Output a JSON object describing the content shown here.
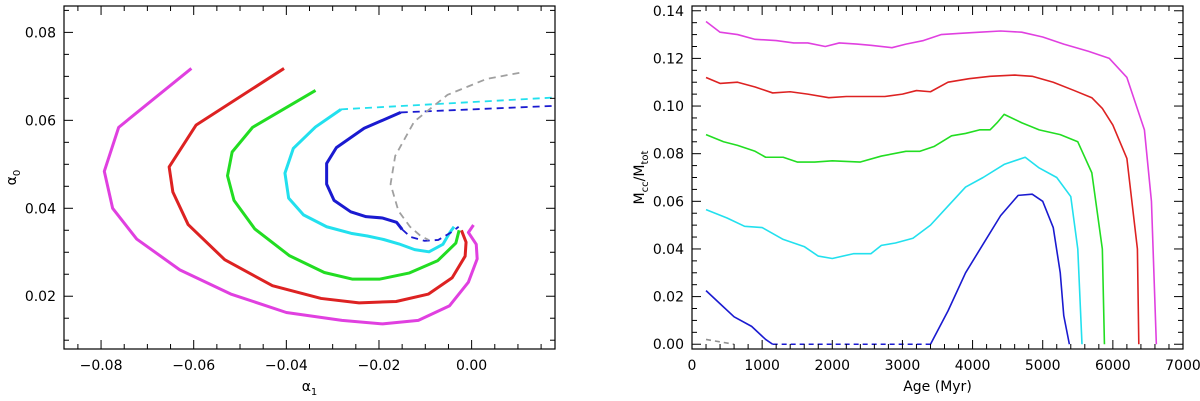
{
  "chart_data": [
    {
      "type": "line",
      "title": "",
      "xlabel": "α1",
      "ylabel": "α0",
      "xlim": [
        -0.088,
        0.018
      ],
      "ylim": [
        0.008,
        0.086
      ],
      "xticks": [
        -0.08,
        -0.06,
        -0.04,
        -0.02,
        0.0
      ],
      "xtick_labels": [
        "−0.08",
        "−0.06",
        "−0.04",
        "−0.02",
        "0.00"
      ],
      "yticks": [
        0.02,
        0.04,
        0.06,
        0.08
      ],
      "ytick_labels": [
        "0.02",
        "0.04",
        "0.06",
        "0.08"
      ],
      "series": [
        {
          "name": "magenta",
          "color": "#e040e0",
          "dash": "solid",
          "points": [
            [
              -0.0605,
              0.0718
            ],
            [
              -0.0762,
              0.0584
            ],
            [
              -0.0793,
              0.0484
            ],
            [
              -0.0775,
              0.04
            ],
            [
              -0.0723,
              0.033
            ],
            [
              -0.063,
              0.026
            ],
            [
              -0.052,
              0.0205
            ],
            [
              -0.04,
              0.0163
            ],
            [
              -0.028,
              0.0145
            ],
            [
              -0.0192,
              0.0137
            ],
            [
              -0.0115,
              0.0145
            ],
            [
              -0.0048,
              0.0178
            ],
            [
              -0.0007,
              0.0232
            ],
            [
              0.0012,
              0.0285
            ],
            [
              0.001,
              0.0318
            ],
            [
              -0.0007,
              0.0345
            ],
            [
              0.0004,
              0.0362
            ]
          ]
        },
        {
          "name": "red",
          "color": "#dd2222",
          "dash": "solid",
          "points": [
            [
              -0.0405,
              0.0718
            ],
            [
              -0.0595,
              0.0589
            ],
            [
              -0.0653,
              0.0494
            ],
            [
              -0.0645,
              0.0437
            ],
            [
              -0.0612,
              0.0363
            ],
            [
              -0.0533,
              0.0283
            ],
            [
              -0.043,
              0.0224
            ],
            [
              -0.0325,
              0.0195
            ],
            [
              -0.0243,
              0.0185
            ],
            [
              -0.0163,
              0.0188
            ],
            [
              -0.0093,
              0.0205
            ],
            [
              -0.0042,
              0.0242
            ],
            [
              -0.0014,
              0.0291
            ],
            [
              -0.0012,
              0.0323
            ],
            [
              -0.0022,
              0.035
            ]
          ]
        },
        {
          "name": "green",
          "color": "#22dd22",
          "dash": "solid",
          "points": [
            [
              -0.0337,
              0.0668
            ],
            [
              -0.0473,
              0.0584
            ],
            [
              -0.0517,
              0.0528
            ],
            [
              -0.0527,
              0.0474
            ],
            [
              -0.0513,
              0.0418
            ],
            [
              -0.0468,
              0.0353
            ],
            [
              -0.0393,
              0.0292
            ],
            [
              -0.0318,
              0.0254
            ],
            [
              -0.0258,
              0.0239
            ],
            [
              -0.0198,
              0.0239
            ],
            [
              -0.0134,
              0.0253
            ],
            [
              -0.0073,
              0.0281
            ],
            [
              -0.0034,
              0.0321
            ],
            [
              -0.0027,
              0.035
            ]
          ]
        },
        {
          "name": "cyan",
          "color": "#22e0ee",
          "dash": "solid",
          "points": [
            [
              -0.0282,
              0.0625
            ],
            [
              -0.0337,
              0.0585
            ],
            [
              -0.0385,
              0.0536
            ],
            [
              -0.0403,
              0.048
            ],
            [
              -0.0395,
              0.0423
            ],
            [
              -0.0363,
              0.0385
            ],
            [
              -0.0313,
              0.0358
            ],
            [
              -0.026,
              0.0343
            ],
            [
              -0.0225,
              0.0337
            ],
            [
              -0.019,
              0.0329
            ],
            [
              -0.0157,
              0.0319
            ],
            [
              -0.0123,
              0.0306
            ],
            [
              -0.0092,
              0.0301
            ],
            [
              -0.0062,
              0.0318
            ],
            [
              -0.0047,
              0.0345
            ],
            [
              -0.0038,
              0.0358
            ]
          ]
        },
        {
          "name": "blue",
          "color": "#1a1ad0",
          "dash": "solid",
          "points": [
            [
              -0.0153,
              0.0618
            ],
            [
              -0.0232,
              0.0582
            ],
            [
              -0.0292,
              0.0538
            ],
            [
              -0.0313,
              0.0502
            ],
            [
              -0.0313,
              0.0455
            ],
            [
              -0.0297,
              0.0418
            ],
            [
              -0.0261,
              0.0392
            ],
            [
              -0.0228,
              0.0381
            ],
            [
              -0.0193,
              0.0378
            ],
            [
              -0.0162,
              0.0368
            ],
            [
              -0.015,
              0.0352
            ]
          ]
        },
        {
          "name": "blue-dashed",
          "color": "#1a1ad0",
          "dash": "dashed",
          "points": [
            [
              -0.015,
              0.0352
            ],
            [
              -0.0132,
              0.0335
            ],
            [
              -0.0102,
              0.0326
            ],
            [
              -0.0072,
              0.0328
            ],
            [
              -0.0043,
              0.0346
            ],
            [
              -0.0028,
              0.0358
            ]
          ]
        },
        {
          "name": "cyan-dashed",
          "color": "#22e0ee",
          "dash": "dashed",
          "points": [
            [
              -0.0282,
              0.0625
            ],
            [
              0.018,
              0.0652
            ]
          ]
        },
        {
          "name": "blue-dashed-line",
          "color": "#1a1ad0",
          "dash": "dashed",
          "points": [
            [
              -0.0153,
              0.0618
            ],
            [
              0.018,
              0.0633
            ]
          ]
        },
        {
          "name": "gray-dashed",
          "color": "#a0a0a0",
          "dash": "dashed",
          "points": [
            [
              0.0103,
              0.0708
            ],
            [
              0.0032,
              0.0694
            ],
            [
              -0.0052,
              0.0658
            ],
            [
              -0.0124,
              0.0597
            ],
            [
              -0.0165,
              0.0519
            ],
            [
              -0.0175,
              0.0455
            ],
            [
              -0.0158,
              0.0394
            ],
            [
              -0.0133,
              0.0358
            ],
            [
              -0.0111,
              0.0338
            ],
            [
              -0.0093,
              0.0328
            ]
          ]
        }
      ]
    },
    {
      "type": "line",
      "title": "",
      "xlabel": "Age (Myr)",
      "ylabel": "Mcc/Mtot",
      "ylabel_parts": [
        "M",
        "cc",
        "/M",
        "tot"
      ],
      "xlim": [
        0,
        7000
      ],
      "ylim": [
        -0.002,
        0.142
      ],
      "xticks": [
        0,
        1000,
        2000,
        3000,
        4000,
        5000,
        6000,
        7000
      ],
      "xtick_labels": [
        "0",
        "1000",
        "2000",
        "3000",
        "4000",
        "5000",
        "6000",
        "7000"
      ],
      "yticks": [
        0.0,
        0.02,
        0.04,
        0.06,
        0.08,
        0.1,
        0.12,
        0.14
      ],
      "ytick_labels": [
        "0.00",
        "0.02",
        "0.04",
        "0.06",
        "0.08",
        "0.10",
        "0.12",
        "0.14"
      ],
      "series": [
        {
          "name": "magenta",
          "color": "#e040e0",
          "dash": "solid",
          "points": [
            [
              200,
              0.1355
            ],
            [
              400,
              0.131
            ],
            [
              650,
              0.13
            ],
            [
              900,
              0.128
            ],
            [
              1200,
              0.1275
            ],
            [
              1450,
              0.1265
            ],
            [
              1650,
              0.1265
            ],
            [
              1900,
              0.125
            ],
            [
              2100,
              0.1265
            ],
            [
              2350,
              0.126
            ],
            [
              2550,
              0.1255
            ],
            [
              2850,
              0.1245
            ],
            [
              3050,
              0.126
            ],
            [
              3300,
              0.1275
            ],
            [
              3550,
              0.13
            ],
            [
              3800,
              0.1305
            ],
            [
              4100,
              0.131
            ],
            [
              4400,
              0.1315
            ],
            [
              4700,
              0.131
            ],
            [
              5000,
              0.129
            ],
            [
              5300,
              0.126
            ],
            [
              5650,
              0.123
            ],
            [
              5950,
              0.12
            ],
            [
              6200,
              0.112
            ],
            [
              6450,
              0.09
            ],
            [
              6550,
              0.06
            ],
            [
              6620,
              0.0
            ]
          ]
        },
        {
          "name": "red",
          "color": "#dd2222",
          "dash": "solid",
          "points": [
            [
              200,
              0.112
            ],
            [
              400,
              0.1095
            ],
            [
              650,
              0.11
            ],
            [
              900,
              0.108
            ],
            [
              1150,
              0.1055
            ],
            [
              1400,
              0.106
            ],
            [
              1650,
              0.105
            ],
            [
              1950,
              0.1035
            ],
            [
              2200,
              0.104
            ],
            [
              2450,
              0.104
            ],
            [
              2750,
              0.104
            ],
            [
              3000,
              0.105
            ],
            [
              3200,
              0.1065
            ],
            [
              3400,
              0.106
            ],
            [
              3650,
              0.11
            ],
            [
              3950,
              0.1115
            ],
            [
              4250,
              0.1125
            ],
            [
              4600,
              0.113
            ],
            [
              4850,
              0.1125
            ],
            [
              5150,
              0.11
            ],
            [
              5450,
              0.1065
            ],
            [
              5700,
              0.1035
            ],
            [
              5850,
              0.099
            ],
            [
              6000,
              0.092
            ],
            [
              6200,
              0.078
            ],
            [
              6350,
              0.04
            ],
            [
              6370,
              0.0
            ]
          ]
        },
        {
          "name": "green",
          "color": "#22dd22",
          "dash": "solid",
          "points": [
            [
              200,
              0.088
            ],
            [
              450,
              0.085
            ],
            [
              650,
              0.0835
            ],
            [
              900,
              0.081
            ],
            [
              1050,
              0.0785
            ],
            [
              1300,
              0.0785
            ],
            [
              1500,
              0.0765
            ],
            [
              1750,
              0.0765
            ],
            [
              2000,
              0.077
            ],
            [
              2400,
              0.0765
            ],
            [
              2700,
              0.079
            ],
            [
              3050,
              0.081
            ],
            [
              3250,
              0.081
            ],
            [
              3450,
              0.083
            ],
            [
              3700,
              0.0875
            ],
            [
              3900,
              0.0885
            ],
            [
              4100,
              0.09
            ],
            [
              4250,
              0.09
            ],
            [
              4350,
              0.093
            ],
            [
              4450,
              0.0965
            ],
            [
              4700,
              0.093
            ],
            [
              4950,
              0.09
            ],
            [
              5250,
              0.088
            ],
            [
              5500,
              0.085
            ],
            [
              5700,
              0.072
            ],
            [
              5850,
              0.04
            ],
            [
              5880,
              0.0
            ]
          ]
        },
        {
          "name": "cyan",
          "color": "#22e0ee",
          "dash": "solid",
          "points": [
            [
              200,
              0.0565
            ],
            [
              500,
              0.053
            ],
            [
              750,
              0.0495
            ],
            [
              1000,
              0.049
            ],
            [
              1300,
              0.044
            ],
            [
              1600,
              0.041
            ],
            [
              1800,
              0.037
            ],
            [
              2000,
              0.036
            ],
            [
              2300,
              0.038
            ],
            [
              2550,
              0.038
            ],
            [
              2700,
              0.0415
            ],
            [
              2900,
              0.0425
            ],
            [
              3150,
              0.0445
            ],
            [
              3400,
              0.05
            ],
            [
              3650,
              0.058
            ],
            [
              3900,
              0.066
            ],
            [
              4150,
              0.07
            ],
            [
              4450,
              0.0755
            ],
            [
              4750,
              0.0785
            ],
            [
              4950,
              0.074
            ],
            [
              5200,
              0.07
            ],
            [
              5400,
              0.062
            ],
            [
              5500,
              0.04
            ],
            [
              5560,
              0.0
            ]
          ]
        },
        {
          "name": "blue",
          "color": "#1a1ad0",
          "dash": "solid",
          "points": [
            [
              200,
              0.0225
            ],
            [
              400,
              0.017
            ],
            [
              600,
              0.0115
            ],
            [
              850,
              0.0075
            ],
            [
              1050,
              0.002
            ],
            [
              1150,
              0.0
            ]
          ]
        },
        {
          "name": "blue-right",
          "color": "#1a1ad0",
          "dash": "solid",
          "points": [
            [
              3400,
              0.0
            ],
            [
              3650,
              0.014
            ],
            [
              3900,
              0.03
            ],
            [
              4150,
              0.042
            ],
            [
              4400,
              0.054
            ],
            [
              4650,
              0.0625
            ],
            [
              4850,
              0.063
            ],
            [
              5000,
              0.06
            ],
            [
              5150,
              0.049
            ],
            [
              5250,
              0.03
            ],
            [
              5300,
              0.012
            ],
            [
              5380,
              0.0
            ]
          ]
        },
        {
          "name": "blue-zero",
          "color": "#1a1ad0",
          "dash": "dashed",
          "points": [
            [
              1150,
              0.0
            ],
            [
              3400,
              0.0
            ]
          ]
        },
        {
          "name": "gray-zero",
          "color": "#909090",
          "dash": "dashed",
          "points": [
            [
              200,
              0.002
            ],
            [
              600,
              0.0
            ]
          ]
        }
      ]
    }
  ]
}
